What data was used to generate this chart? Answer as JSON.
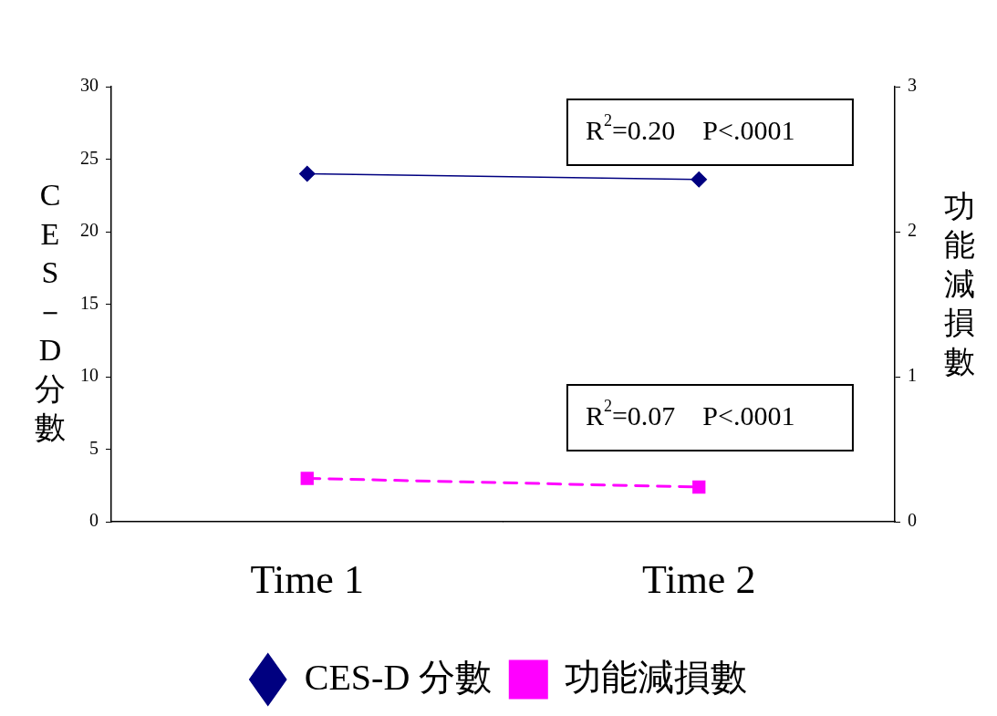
{
  "chart_data": {
    "type": "line",
    "categories": [
      "Time 1",
      "Time 2"
    ],
    "ylabel": "CES－D分數",
    "y2label": "功能減損數",
    "ylim": [
      0,
      30
    ],
    "yticks": [
      0,
      5,
      10,
      15,
      20,
      25,
      30
    ],
    "y2lim": [
      0,
      3
    ],
    "y2ticks": [
      0,
      1,
      2,
      3
    ],
    "series": [
      {
        "name": "CES-D 分數",
        "color": "#000080",
        "values": [
          24.0,
          23.6
        ],
        "marker": "diamond",
        "line_style": "solid"
      },
      {
        "name": "功能減損數",
        "color": "#ff00ff",
        "values": [
          0.3,
          0.24
        ],
        "axis": "y2",
        "marker": "square",
        "line_style": "dashed"
      }
    ],
    "annotations": [
      "R$^{2}$=0.20    P<.0001",
      "R$^{2}$=0.07    P<.0001"
    ],
    "grid": false,
    "legend": "bottom"
  }
}
